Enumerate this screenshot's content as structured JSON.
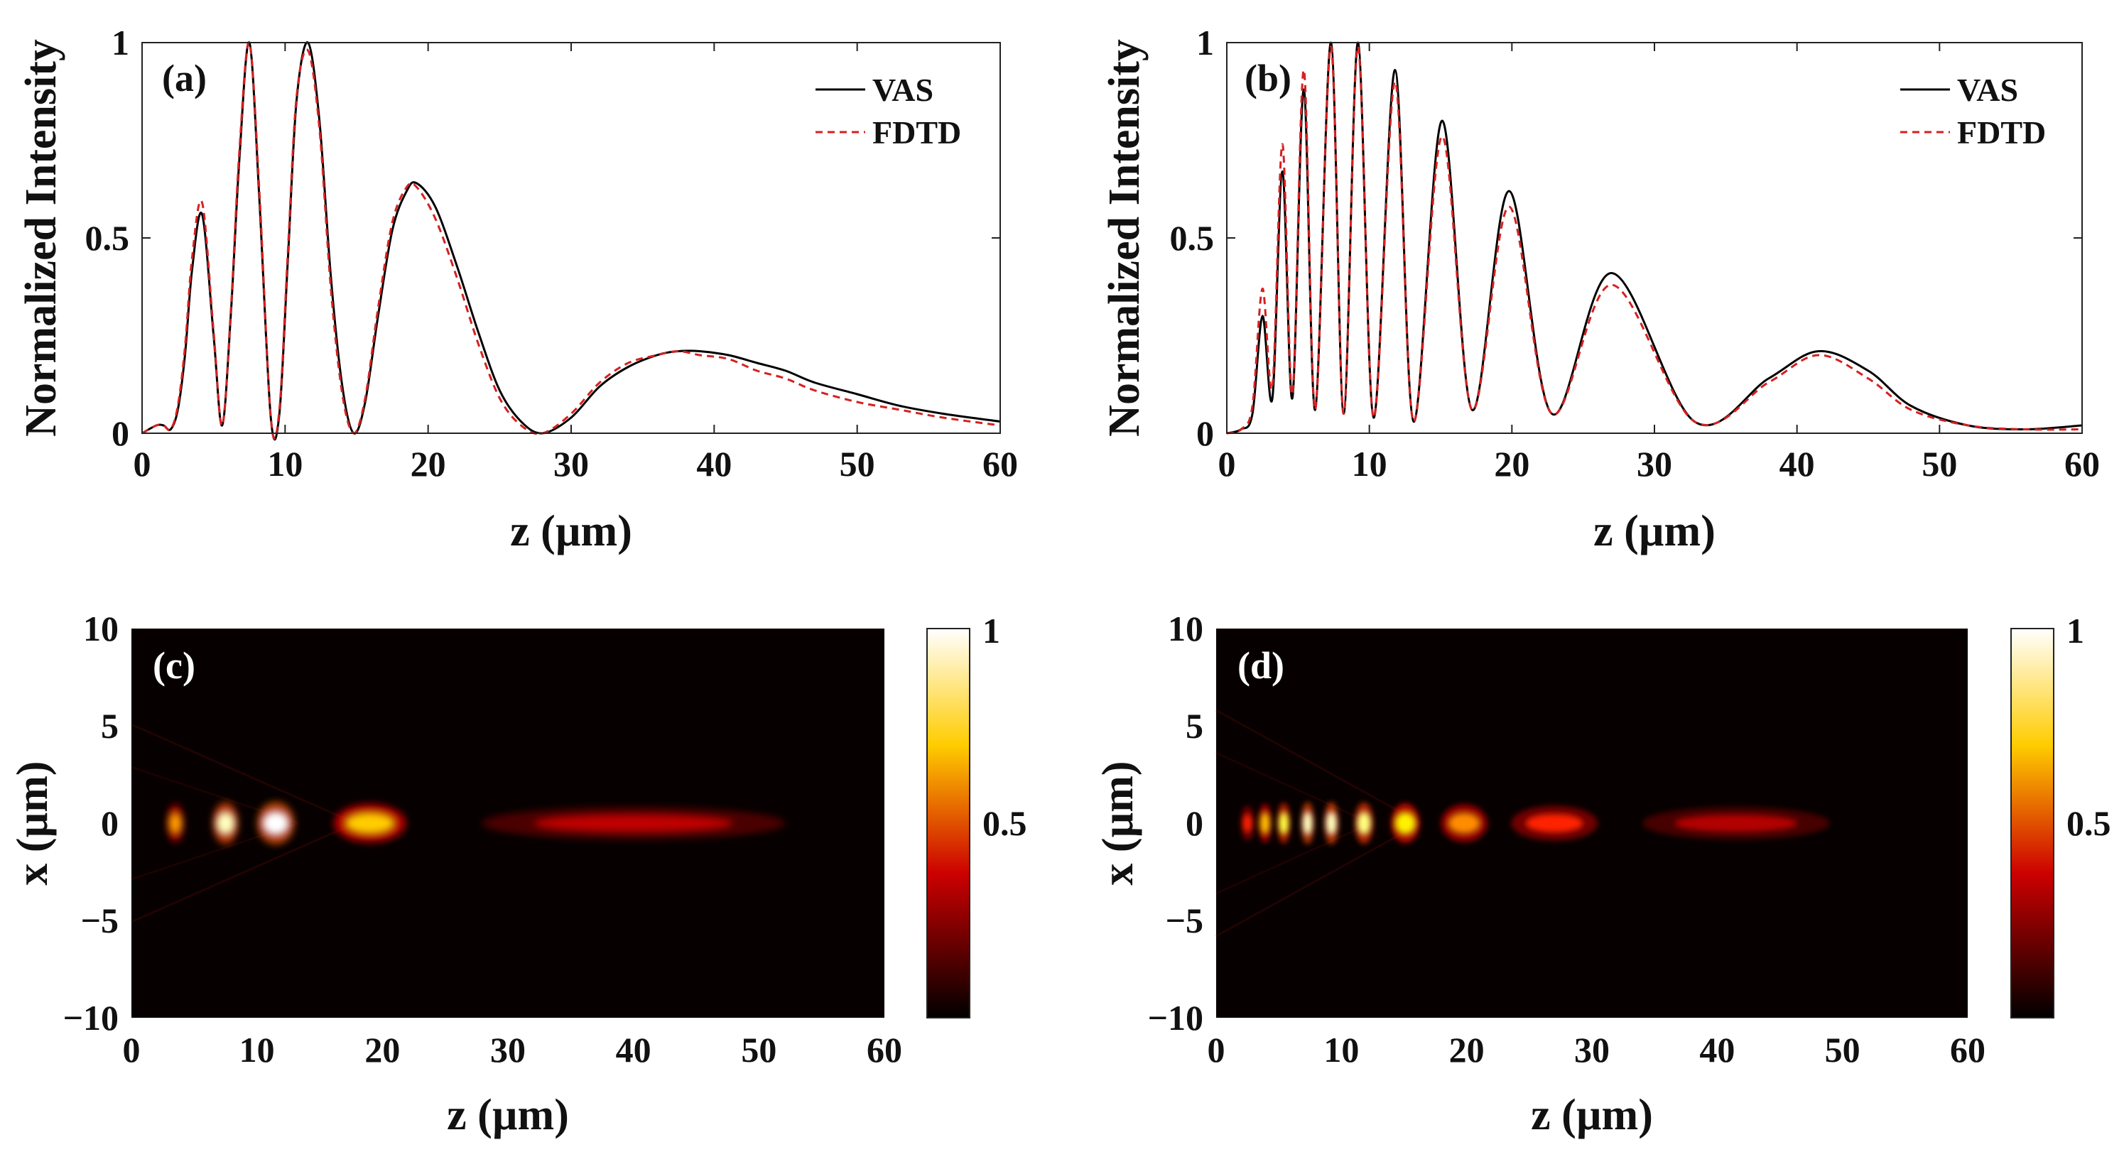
{
  "chart_data": [
    {
      "id": "a",
      "type": "line",
      "panel_label": "(a)",
      "xlabel": "z (µm)",
      "ylabel": "Normalized Intensity",
      "xlim": [
        0,
        60
      ],
      "ylim": [
        0,
        1
      ],
      "xticks": [
        "0",
        "10",
        "20",
        "30",
        "40",
        "50",
        "60"
      ],
      "yticks": [
        "0",
        "0.5",
        "1"
      ],
      "legend_position": "top-right",
      "series": [
        {
          "name": "VAS",
          "color": "#000000",
          "style": "solid",
          "x": [
            0,
            1,
            1.5,
            2,
            2.5,
            3,
            3.5,
            4.2,
            5,
            5.6,
            6.2,
            6.8,
            7.5,
            8.2,
            9,
            9.6,
            10.2,
            10.8,
            11.6,
            12.4,
            13.2,
            14,
            14.8,
            15.6,
            16.5,
            17.5,
            18.5,
            19.2,
            20.5,
            22,
            23.5,
            25,
            26.5,
            28,
            30,
            32,
            34,
            36,
            37.5,
            39,
            41,
            43,
            45,
            47,
            50,
            53,
            56,
            60
          ],
          "y": [
            0,
            0.02,
            0.02,
            0.01,
            0.06,
            0.2,
            0.42,
            0.56,
            0.25,
            0.02,
            0.3,
            0.7,
            1.0,
            0.6,
            0.04,
            0.05,
            0.45,
            0.85,
            1.0,
            0.8,
            0.4,
            0.12,
            0.0,
            0.08,
            0.3,
            0.52,
            0.62,
            0.64,
            0.58,
            0.43,
            0.26,
            0.11,
            0.03,
            0.0,
            0.04,
            0.12,
            0.17,
            0.2,
            0.21,
            0.21,
            0.2,
            0.18,
            0.16,
            0.13,
            0.1,
            0.07,
            0.05,
            0.03
          ]
        },
        {
          "name": "FDTD",
          "color": "#d62020",
          "style": "dashed",
          "x": [
            0,
            1,
            1.5,
            2,
            2.5,
            3,
            3.5,
            4.2,
            5,
            5.6,
            6.2,
            6.8,
            7.5,
            8.2,
            9,
            9.6,
            10.2,
            10.8,
            11.6,
            12.4,
            13.2,
            14,
            14.8,
            15.6,
            16.5,
            17.5,
            18.5,
            19.2,
            20.5,
            22,
            23.5,
            25,
            26.5,
            28,
            30,
            32,
            34,
            36,
            37.5,
            39,
            41,
            43,
            45,
            47,
            50,
            53,
            56,
            60
          ],
          "y": [
            0,
            0.02,
            0.02,
            0.01,
            0.07,
            0.22,
            0.45,
            0.59,
            0.26,
            0.02,
            0.31,
            0.72,
            1.0,
            0.62,
            0.04,
            0.06,
            0.47,
            0.86,
            0.98,
            0.78,
            0.37,
            0.1,
            0.0,
            0.09,
            0.32,
            0.54,
            0.63,
            0.63,
            0.55,
            0.4,
            0.23,
            0.09,
            0.02,
            0.0,
            0.05,
            0.13,
            0.18,
            0.2,
            0.21,
            0.2,
            0.19,
            0.16,
            0.14,
            0.11,
            0.08,
            0.06,
            0.04,
            0.02
          ]
        }
      ]
    },
    {
      "id": "b",
      "type": "line",
      "panel_label": "(b)",
      "xlabel": "z (µm)",
      "ylabel": "Normalized Intensity",
      "xlim": [
        0,
        60
      ],
      "ylim": [
        0,
        1
      ],
      "xticks": [
        "0",
        "10",
        "20",
        "30",
        "40",
        "50",
        "60"
      ],
      "yticks": [
        "0",
        "0.5",
        "1"
      ],
      "legend_position": "top-right",
      "series": [
        {
          "name": "VAS",
          "color": "#000000",
          "style": "solid",
          "x": [
            0,
            1,
            1.8,
            2.5,
            3.2,
            3.9,
            4.6,
            5.4,
            6.2,
            7.3,
            8.2,
            9.2,
            10.3,
            11.8,
            13.1,
            15.1,
            17.2,
            19.8,
            22.8,
            27.0,
            32.8,
            38,
            41.5,
            45,
            48,
            52,
            56,
            60
          ],
          "y": [
            0,
            0.01,
            0.05,
            0.3,
            0.09,
            0.67,
            0.09,
            0.88,
            0.06,
            1.0,
            0.05,
            1.0,
            0.04,
            0.93,
            0.03,
            0.8,
            0.06,
            0.62,
            0.05,
            0.41,
            0.03,
            0.14,
            0.21,
            0.16,
            0.07,
            0.02,
            0.01,
            0.02
          ]
        },
        {
          "name": "FDTD",
          "color": "#d62020",
          "style": "dashed",
          "x": [
            0,
            1,
            1.8,
            2.5,
            3.2,
            3.9,
            4.6,
            5.4,
            6.2,
            7.3,
            8.2,
            9.2,
            10.3,
            11.8,
            13.1,
            15.1,
            17.2,
            19.8,
            22.8,
            27.0,
            32.8,
            38,
            41.5,
            45,
            48,
            52,
            56,
            60
          ],
          "y": [
            0,
            0.01,
            0.07,
            0.37,
            0.12,
            0.74,
            0.1,
            0.93,
            0.06,
            0.99,
            0.05,
            0.99,
            0.04,
            0.9,
            0.03,
            0.76,
            0.06,
            0.58,
            0.05,
            0.38,
            0.03,
            0.13,
            0.2,
            0.14,
            0.06,
            0.02,
            0.01,
            0.01
          ]
        }
      ]
    },
    {
      "id": "c",
      "type": "heatmap",
      "panel_label": "(c)",
      "xlabel": "z (µm)",
      "ylabel": "x (µm)",
      "xlim": [
        0,
        60
      ],
      "ylim": [
        -10,
        10
      ],
      "xticks": [
        "0",
        "10",
        "20",
        "30",
        "40",
        "50",
        "60"
      ],
      "yticks": [
        "10",
        "5",
        "0",
        "−5",
        "−10"
      ],
      "colorbar_ticks": [
        "1",
        "0.5"
      ],
      "colormap": "hot",
      "foci": [
        {
          "z": 3.5,
          "intensity": 0.65,
          "length": 1.2
        },
        {
          "z": 7.5,
          "intensity": 0.95,
          "length": 1.8
        },
        {
          "z": 11.5,
          "intensity": 1.0,
          "length": 2.6
        },
        {
          "z": 19.0,
          "intensity": 0.72,
          "length": 5.0
        },
        {
          "z": 40.0,
          "intensity": 0.3,
          "length": 21.0
        }
      ]
    },
    {
      "id": "d",
      "type": "heatmap",
      "panel_label": "(d)",
      "xlabel": "z (µm)",
      "ylabel": "x (µm)",
      "xlim": [
        0,
        60
      ],
      "ylim": [
        -10,
        10
      ],
      "xticks": [
        "0",
        "10",
        "20",
        "30",
        "40",
        "50",
        "60"
      ],
      "yticks": [
        "10",
        "5",
        "0",
        "−5",
        "−10"
      ],
      "colorbar_ticks": [
        "1",
        "0.5"
      ],
      "colormap": "hot",
      "foci": [
        {
          "z": 2.5,
          "intensity": 0.45,
          "length": 0.6
        },
        {
          "z": 3.9,
          "intensity": 0.7,
          "length": 0.7
        },
        {
          "z": 5.4,
          "intensity": 0.85,
          "length": 0.8
        },
        {
          "z": 7.3,
          "intensity": 0.95,
          "length": 0.9
        },
        {
          "z": 9.2,
          "intensity": 0.95,
          "length": 1.0
        },
        {
          "z": 11.8,
          "intensity": 0.9,
          "length": 1.3
        },
        {
          "z": 15.1,
          "intensity": 0.78,
          "length": 2.0
        },
        {
          "z": 19.8,
          "intensity": 0.62,
          "length": 3.2
        },
        {
          "z": 27.0,
          "intensity": 0.45,
          "length": 6.0
        },
        {
          "z": 41.5,
          "intensity": 0.28,
          "length": 13.0
        }
      ]
    }
  ]
}
